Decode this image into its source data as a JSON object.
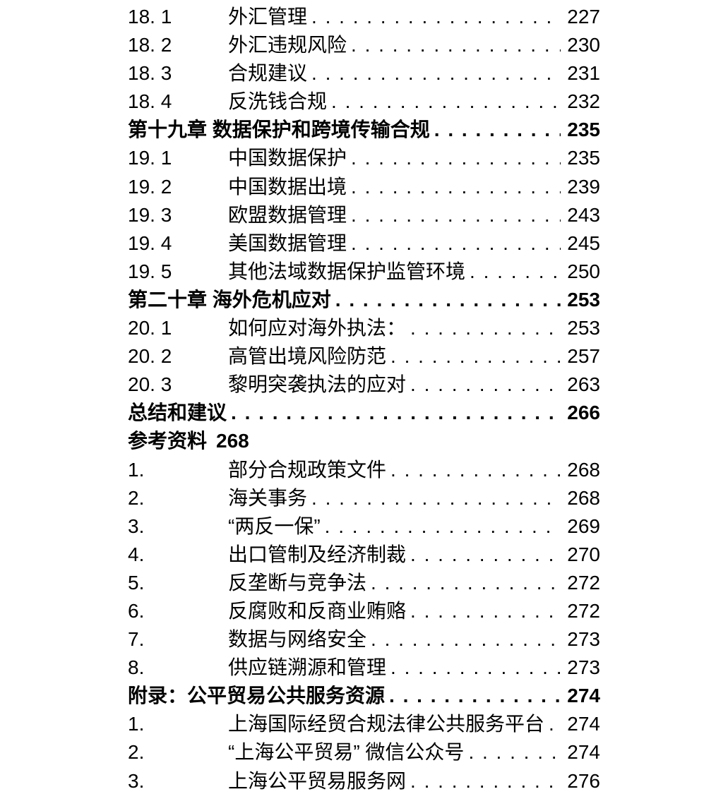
{
  "page": {
    "background_color": "#ffffff",
    "text_color": "#000000"
  },
  "toc": {
    "rows": [
      {
        "style": "section",
        "num": "18. 1",
        "title": "外汇管理",
        "page": "227"
      },
      {
        "style": "section",
        "num": "18. 2",
        "title": "外汇违规风险",
        "page": "230"
      },
      {
        "style": "section",
        "num": "18. 3",
        "title": "合规建议",
        "page": "231"
      },
      {
        "style": "section",
        "num": "18. 4",
        "title": "反洗钱合规",
        "page": "232"
      },
      {
        "style": "chapter",
        "title": "第十九章 数据保护和跨境传输合规",
        "page": "235"
      },
      {
        "style": "section",
        "num": "19. 1",
        "title": "中国数据保护",
        "page": "235"
      },
      {
        "style": "section",
        "num": "19. 2",
        "title": "中国数据出境",
        "page": "239"
      },
      {
        "style": "section",
        "num": "19. 3",
        "title": "欧盟数据管理",
        "page": "243"
      },
      {
        "style": "section",
        "num": "19. 4",
        "title": "美国数据管理",
        "page": "245"
      },
      {
        "style": "section",
        "num": "19. 5",
        "title": "其他法域数据保护监管环境",
        "page": "250"
      },
      {
        "style": "chapter",
        "title": "第二十章 海外危机应对",
        "page": "253"
      },
      {
        "style": "section",
        "num": "20. 1",
        "title": "如何应对海外执法：",
        "page": "253"
      },
      {
        "style": "section",
        "num": "20. 2",
        "title": "高管出境风险防范",
        "page": "257"
      },
      {
        "style": "section",
        "num": "20. 3",
        "title": "黎明突袭执法的应对",
        "page": "263"
      },
      {
        "style": "chapter",
        "title": "总结和建议",
        "page": "266"
      },
      {
        "style": "chapter",
        "title": "参考资料",
        "page": "268",
        "leader": false
      },
      {
        "style": "section",
        "num": "1.",
        "title": "部分合规政策文件",
        "page": "268"
      },
      {
        "style": "section",
        "num": "2.",
        "title": "海关事务",
        "page": "268"
      },
      {
        "style": "section",
        "num": "3.",
        "title": "“两反一保”",
        "page": "269"
      },
      {
        "style": "section",
        "num": "4.",
        "title": "出口管制及经济制裁",
        "page": "270"
      },
      {
        "style": "section",
        "num": "5.",
        "title": "反垄断与竞争法",
        "page": "272"
      },
      {
        "style": "section",
        "num": "6.",
        "title": "反腐败和反商业贿赂",
        "page": "272"
      },
      {
        "style": "section",
        "num": "7.",
        "title": "数据与网络安全",
        "page": "273"
      },
      {
        "style": "section",
        "num": "8.",
        "title": "供应链溯源和管理",
        "page": "273"
      },
      {
        "style": "chapter",
        "title": "附录：公平贸易公共服务资源",
        "page": "274"
      },
      {
        "style": "section",
        "num": "1.",
        "title": "上海国际经贸合规法律公共服务平台",
        "page": "274"
      },
      {
        "style": "section",
        "num": "2.",
        "title": "“上海公平贸易” 微信公众号",
        "page": "274"
      },
      {
        "style": "section",
        "num": "3.",
        "title": "上海公平贸易服务网",
        "page": "276"
      }
    ]
  }
}
